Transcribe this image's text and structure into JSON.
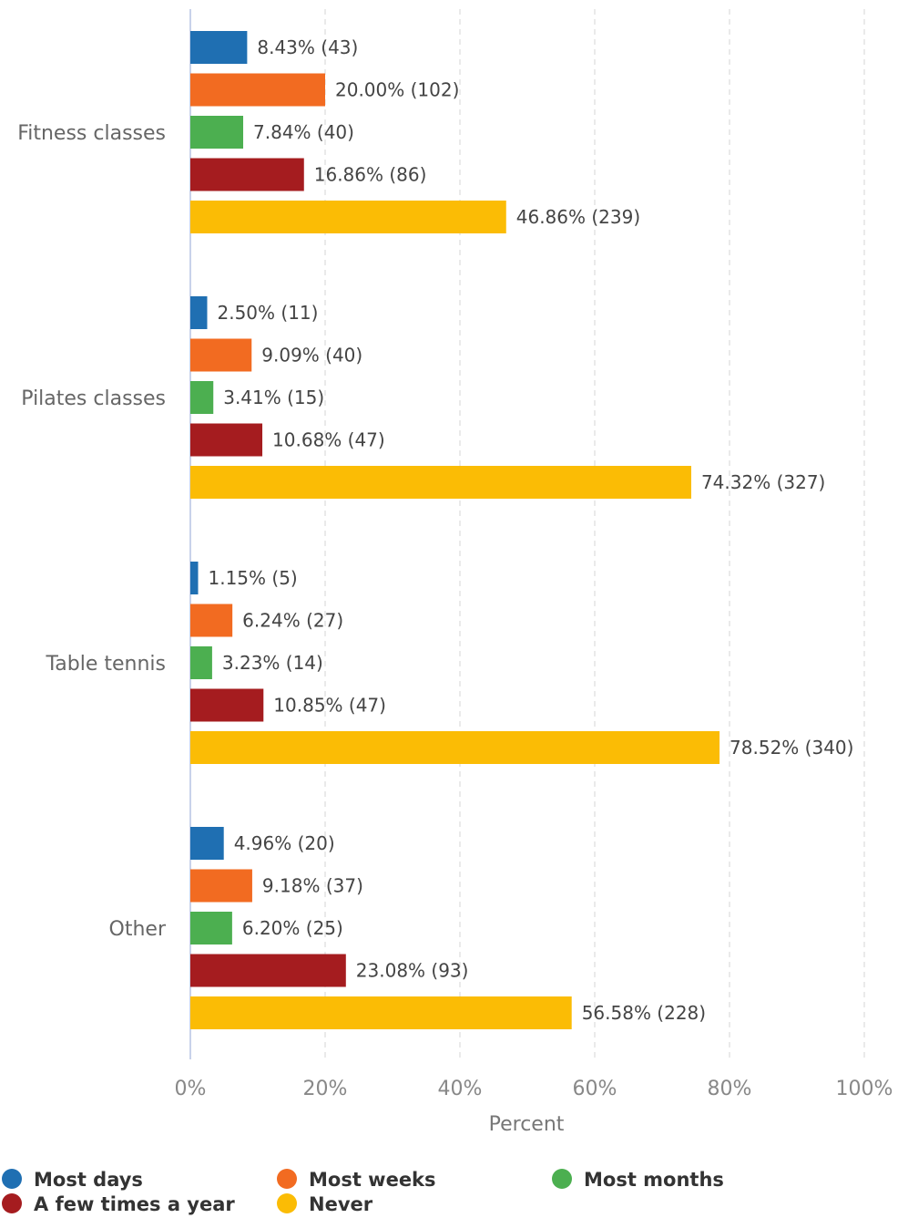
{
  "chart_data": {
    "type": "bar",
    "orientation": "horizontal",
    "categories": [
      "Fitness classes",
      "Pilates classes",
      "Table tennis",
      "Other"
    ],
    "series": [
      {
        "name": "Most days",
        "color": "#1f6fb2",
        "values": [
          8.43,
          2.5,
          1.15,
          4.96
        ],
        "labels": [
          "8.43% (43)",
          "2.50% (11)",
          "1.15% (5)",
          "4.96% (20)"
        ]
      },
      {
        "name": "Most weeks",
        "color": "#f26b21",
        "values": [
          20.0,
          9.09,
          6.24,
          9.18
        ],
        "labels": [
          "20.00% (102)",
          "9.09% (40)",
          "6.24% (27)",
          "9.18% (37)"
        ]
      },
      {
        "name": "Most months",
        "color": "#4caf50",
        "values": [
          7.84,
          3.41,
          3.23,
          6.2
        ],
        "labels": [
          "7.84% (40)",
          "3.41% (15)",
          "3.23% (14)",
          "6.20% (25)"
        ]
      },
      {
        "name": "A few times a year",
        "color": "#a51c1f",
        "values": [
          16.86,
          10.68,
          10.85,
          23.08
        ],
        "labels": [
          "16.86% (86)",
          "10.68% (47)",
          "10.85% (47)",
          "23.08% (93)"
        ]
      },
      {
        "name": "Never",
        "color": "#fbbc05",
        "values": [
          46.86,
          74.32,
          78.52,
          56.58
        ],
        "labels": [
          "46.86% (239)",
          "74.32% (327)",
          "78.52% (340)",
          "56.58% (228)"
        ]
      }
    ],
    "xlabel": "Percent",
    "xlim": [
      0,
      100
    ],
    "xticks": [
      0,
      20,
      40,
      60,
      80,
      100
    ],
    "xtick_labels": [
      "0%",
      "20%",
      "40%",
      "60%",
      "80%",
      "100%"
    ],
    "grid": true,
    "legend_position": "bottom"
  }
}
